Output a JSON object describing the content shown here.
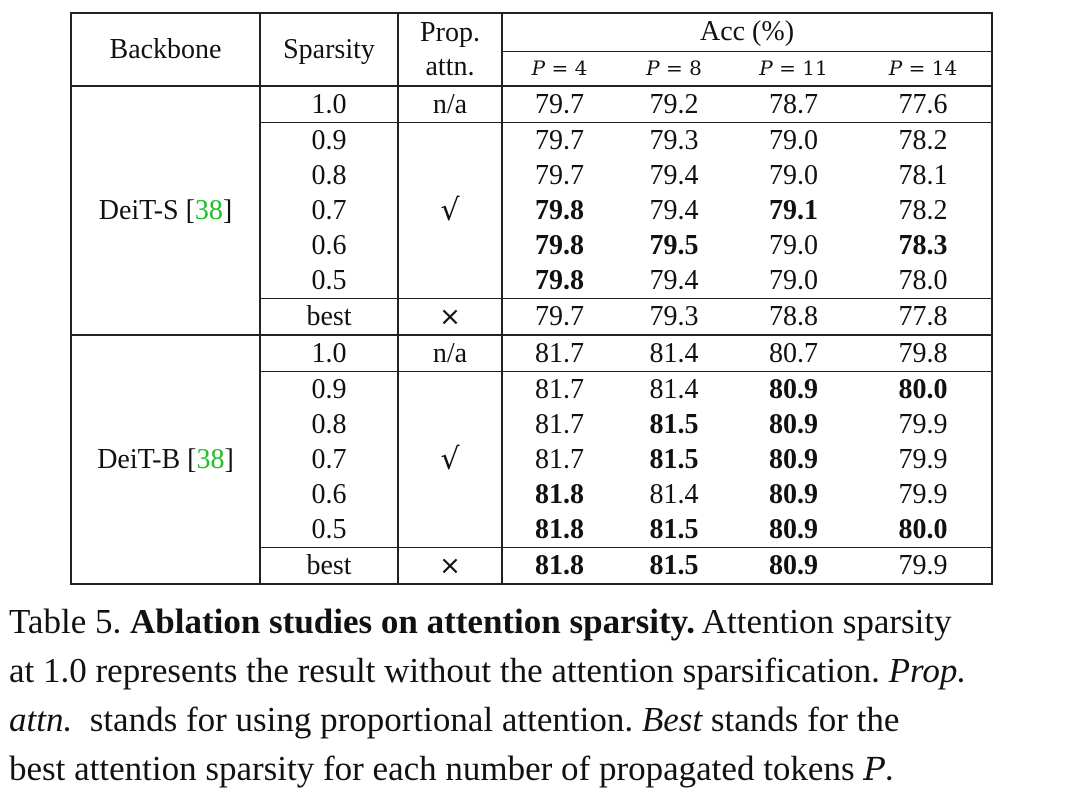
{
  "table": {
    "headers": {
      "backbone": "Backbone",
      "sparsity": "Sparsity",
      "prop_line1": "Prop.",
      "prop_line2": "attn.",
      "acc": "Acc (%)",
      "p_symbol": "P",
      "eq": "=",
      "p_values": [
        "4",
        "8",
        "11",
        "14"
      ]
    },
    "groups": [
      {
        "backbone": "DeiT-S",
        "ref": "38",
        "baseline": {
          "sparsity": "1.0",
          "prop": "n/a",
          "acc": [
            "79.7",
            "79.2",
            "78.7",
            "77.6"
          ],
          "bold": [
            false,
            false,
            false,
            false
          ]
        },
        "rows": [
          {
            "sparsity": "0.9",
            "acc": [
              "79.7",
              "79.3",
              "79.0",
              "78.2"
            ],
            "bold": [
              false,
              false,
              false,
              false
            ]
          },
          {
            "sparsity": "0.8",
            "acc": [
              "79.7",
              "79.4",
              "79.0",
              "78.1"
            ],
            "bold": [
              false,
              false,
              false,
              false
            ]
          },
          {
            "sparsity": "0.7",
            "acc": [
              "79.8",
              "79.4",
              "79.1",
              "78.2"
            ],
            "bold": [
              true,
              false,
              true,
              false
            ]
          },
          {
            "sparsity": "0.6",
            "acc": [
              "79.8",
              "79.5",
              "79.0",
              "78.3"
            ],
            "bold": [
              true,
              true,
              false,
              true
            ]
          },
          {
            "sparsity": "0.5",
            "acc": [
              "79.8",
              "79.4",
              "79.0",
              "78.0"
            ],
            "bold": [
              true,
              false,
              false,
              false
            ]
          }
        ],
        "prop_mark": "√",
        "best": {
          "sparsity": "best",
          "prop": "×",
          "acc": [
            "79.7",
            "79.3",
            "78.8",
            "77.8"
          ],
          "bold": [
            false,
            false,
            false,
            false
          ]
        }
      },
      {
        "backbone": "DeiT-B",
        "ref": "38",
        "baseline": {
          "sparsity": "1.0",
          "prop": "n/a",
          "acc": [
            "81.7",
            "81.4",
            "80.7",
            "79.8"
          ],
          "bold": [
            false,
            false,
            false,
            false
          ]
        },
        "rows": [
          {
            "sparsity": "0.9",
            "acc": [
              "81.7",
              "81.4",
              "80.9",
              "80.0"
            ],
            "bold": [
              false,
              false,
              true,
              true
            ]
          },
          {
            "sparsity": "0.8",
            "acc": [
              "81.7",
              "81.5",
              "80.9",
              "79.9"
            ],
            "bold": [
              false,
              true,
              true,
              false
            ]
          },
          {
            "sparsity": "0.7",
            "acc": [
              "81.7",
              "81.5",
              "80.9",
              "79.9"
            ],
            "bold": [
              false,
              true,
              true,
              false
            ]
          },
          {
            "sparsity": "0.6",
            "acc": [
              "81.8",
              "81.4",
              "80.9",
              "79.9"
            ],
            "bold": [
              true,
              false,
              true,
              false
            ]
          },
          {
            "sparsity": "0.5",
            "acc": [
              "81.8",
              "81.5",
              "80.9",
              "80.0"
            ],
            "bold": [
              true,
              true,
              true,
              true
            ]
          }
        ],
        "prop_mark": "√",
        "best": {
          "sparsity": "best",
          "prop": "×",
          "acc": [
            "81.8",
            "81.5",
            "80.9",
            "79.9"
          ],
          "bold": [
            true,
            true,
            true,
            false
          ]
        }
      }
    ]
  },
  "caption": {
    "label": "Table 5.",
    "title": "Ablation studies on attention sparsity.",
    "text1": "Attention sparsity",
    "line2": "at 1.0 represents the result without the attention sparsification.",
    "prop_italic": "Prop.",
    "attn_italic": "attn.",
    "line3_mid": "stands for using proportional attention.",
    "best_italic": "Best",
    "line3_end": "stands for the",
    "line4": "best attention sparsity for each number of propagated tokens",
    "p_symbol": "P",
    "period": "."
  }
}
